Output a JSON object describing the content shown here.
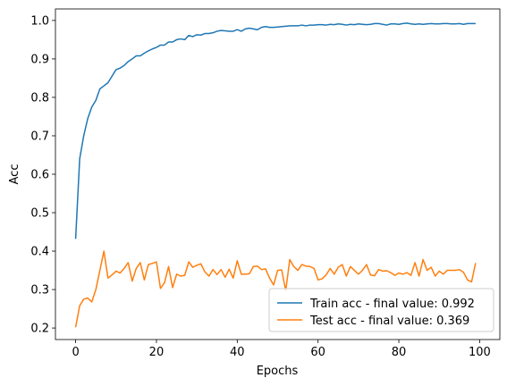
{
  "chart_data": {
    "type": "line",
    "xlabel": "Epochs",
    "ylabel": "Acc",
    "xlim": [
      -5,
      105
    ],
    "ylim": [
      0.17,
      1.03
    ],
    "x_ticks": [
      0,
      20,
      40,
      60,
      80,
      100
    ],
    "y_ticks": [
      0.2,
      0.3,
      0.4,
      0.5,
      0.6,
      0.7,
      0.8,
      0.9,
      1.0
    ],
    "x_tick_labels": [
      "0",
      "20",
      "40",
      "60",
      "80",
      "100"
    ],
    "y_tick_labels": [
      "0.2",
      "0.3",
      "0.4",
      "0.5",
      "0.6",
      "0.7",
      "0.8",
      "0.9",
      "1.0"
    ],
    "grid": false,
    "legend_position": "lower-right",
    "x": [
      0,
      1,
      2,
      3,
      4,
      5,
      6,
      7,
      8,
      9,
      10,
      11,
      12,
      13,
      14,
      15,
      16,
      17,
      18,
      19,
      20,
      21,
      22,
      23,
      24,
      25,
      26,
      27,
      28,
      29,
      30,
      31,
      32,
      33,
      34,
      35,
      36,
      37,
      38,
      39,
      40,
      41,
      42,
      43,
      44,
      45,
      46,
      47,
      48,
      49,
      50,
      51,
      52,
      53,
      54,
      55,
      56,
      57,
      58,
      59,
      60,
      61,
      62,
      63,
      64,
      65,
      66,
      67,
      68,
      69,
      70,
      71,
      72,
      73,
      74,
      75,
      76,
      77,
      78,
      79,
      80,
      81,
      82,
      83,
      84,
      85,
      86,
      87,
      88,
      89,
      90,
      91,
      92,
      93,
      94,
      95,
      96,
      97,
      98,
      99
    ],
    "series": [
      {
        "name": "Train acc - final value: 0.992",
        "color": "#1f77b4",
        "values": [
          0.432,
          0.64,
          0.7,
          0.745,
          0.775,
          0.792,
          0.822,
          0.83,
          0.838,
          0.855,
          0.872,
          0.876,
          0.883,
          0.893,
          0.9,
          0.908,
          0.908,
          0.915,
          0.921,
          0.926,
          0.93,
          0.936,
          0.936,
          0.944,
          0.944,
          0.95,
          0.952,
          0.95,
          0.961,
          0.958,
          0.963,
          0.962,
          0.966,
          0.966,
          0.968,
          0.972,
          0.974,
          0.973,
          0.972,
          0.972,
          0.976,
          0.972,
          0.978,
          0.98,
          0.978,
          0.976,
          0.982,
          0.984,
          0.982,
          0.982,
          0.983,
          0.984,
          0.985,
          0.986,
          0.986,
          0.986,
          0.988,
          0.986,
          0.988,
          0.988,
          0.989,
          0.989,
          0.988,
          0.99,
          0.989,
          0.991,
          0.99,
          0.988,
          0.99,
          0.989,
          0.991,
          0.99,
          0.989,
          0.99,
          0.992,
          0.992,
          0.99,
          0.988,
          0.991,
          0.991,
          0.99,
          0.992,
          0.993,
          0.991,
          0.99,
          0.991,
          0.99,
          0.991,
          0.992,
          0.991,
          0.991,
          0.992,
          0.992,
          0.991,
          0.991,
          0.992,
          0.99,
          0.992,
          0.992,
          0.992
        ]
      },
      {
        "name": "Test acc - final value: 0.369",
        "color": "#ff7f0e",
        "values": [
          0.202,
          0.258,
          0.275,
          0.278,
          0.268,
          0.3,
          0.35,
          0.4,
          0.33,
          0.338,
          0.348,
          0.343,
          0.355,
          0.37,
          0.322,
          0.355,
          0.37,
          0.325,
          0.365,
          0.368,
          0.372,
          0.303,
          0.318,
          0.36,
          0.305,
          0.34,
          0.335,
          0.337,
          0.372,
          0.358,
          0.363,
          0.367,
          0.346,
          0.335,
          0.352,
          0.339,
          0.352,
          0.332,
          0.353,
          0.33,
          0.375,
          0.34,
          0.34,
          0.341,
          0.36,
          0.361,
          0.352,
          0.354,
          0.33,
          0.312,
          0.35,
          0.351,
          0.297,
          0.378,
          0.36,
          0.35,
          0.365,
          0.361,
          0.36,
          0.355,
          0.325,
          0.328,
          0.338,
          0.355,
          0.34,
          0.358,
          0.365,
          0.335,
          0.36,
          0.35,
          0.34,
          0.35,
          0.365,
          0.338,
          0.336,
          0.352,
          0.348,
          0.349,
          0.344,
          0.337,
          0.343,
          0.34,
          0.344,
          0.337,
          0.37,
          0.335,
          0.378,
          0.35,
          0.358,
          0.335,
          0.348,
          0.34,
          0.35,
          0.35,
          0.35,
          0.352,
          0.345,
          0.325,
          0.32,
          0.369
        ]
      }
    ]
  }
}
